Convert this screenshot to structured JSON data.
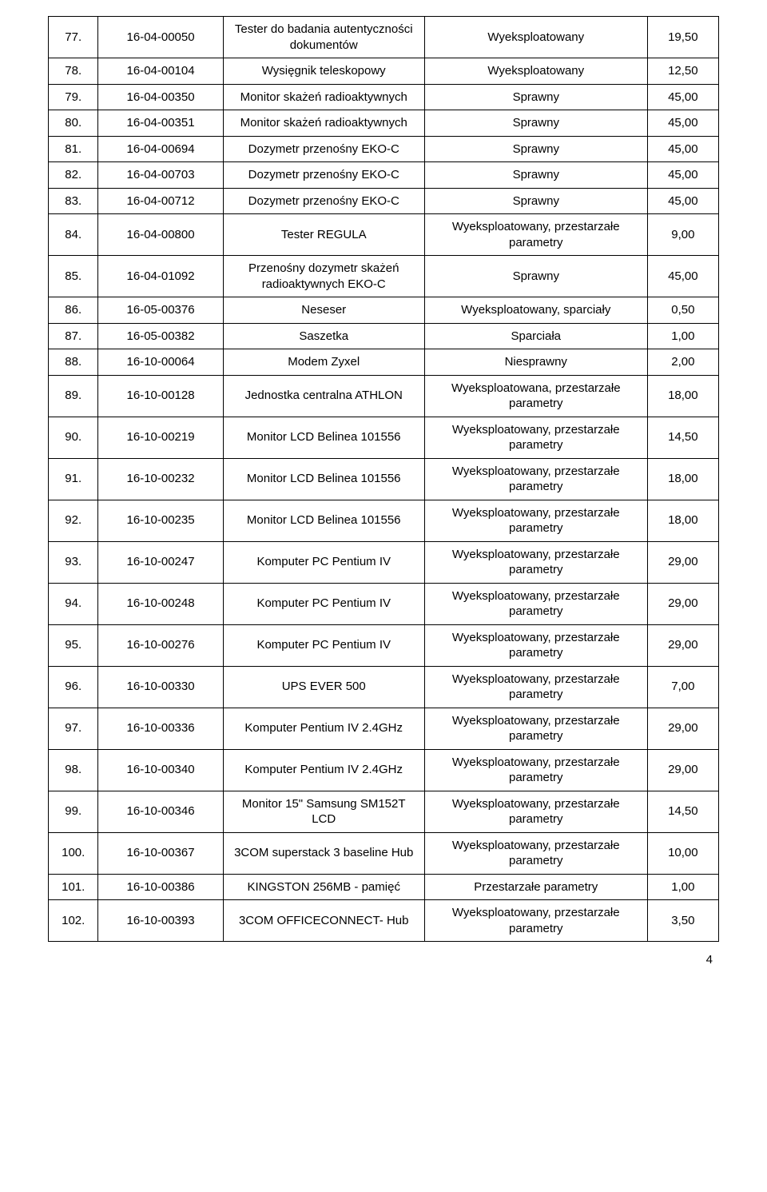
{
  "page_number": "4",
  "columns": [
    "no",
    "code",
    "desc",
    "status",
    "price"
  ],
  "rows": [
    {
      "no": "77.",
      "code": "16-04-00050",
      "desc": "Tester do badania autentyczności dokumentów",
      "status": "Wyeksploatowany",
      "price": "19,50"
    },
    {
      "no": "78.",
      "code": "16-04-00104",
      "desc": "Wysięgnik teleskopowy",
      "status": "Wyeksploatowany",
      "price": "12,50"
    },
    {
      "no": "79.",
      "code": "16-04-00350",
      "desc": "Monitor skażeń radioaktywnych",
      "status": "Sprawny",
      "price": "45,00"
    },
    {
      "no": "80.",
      "code": "16-04-00351",
      "desc": "Monitor skażeń radioaktywnych",
      "status": "Sprawny",
      "price": "45,00"
    },
    {
      "no": "81.",
      "code": "16-04-00694",
      "desc": "Dozymetr przenośny EKO-C",
      "status": "Sprawny",
      "price": "45,00"
    },
    {
      "no": "82.",
      "code": "16-04-00703",
      "desc": "Dozymetr przenośny EKO-C",
      "status": "Sprawny",
      "price": "45,00"
    },
    {
      "no": "83.",
      "code": "16-04-00712",
      "desc": "Dozymetr przenośny EKO-C",
      "status": "Sprawny",
      "price": "45,00"
    },
    {
      "no": "84.",
      "code": "16-04-00800",
      "desc": "Tester REGULA",
      "status": "Wyeksploatowany, przestarzałe parametry",
      "price": "9,00"
    },
    {
      "no": "85.",
      "code": "16-04-01092",
      "desc": "Przenośny dozymetr skażeń radioaktywnych EKO-C",
      "status": "Sprawny",
      "price": "45,00"
    },
    {
      "no": "86.",
      "code": "16-05-00376",
      "desc": "Neseser",
      "status": "Wyeksploatowany, sparciały",
      "price": "0,50"
    },
    {
      "no": "87.",
      "code": "16-05-00382",
      "desc": "Saszetka",
      "status": "Sparciała",
      "price": "1,00"
    },
    {
      "no": "88.",
      "code": "16-10-00064",
      "desc": "Modem Zyxel",
      "status": "Niesprawny",
      "price": "2,00"
    },
    {
      "no": "89.",
      "code": "16-10-00128",
      "desc": "Jednostka centralna ATHLON",
      "status": "Wyeksploatowana, przestarzałe parametry",
      "price": "18,00"
    },
    {
      "no": "90.",
      "code": "16-10-00219",
      "desc": "Monitor LCD Belinea 101556",
      "status": "Wyeksploatowany, przestarzałe parametry",
      "price": "14,50"
    },
    {
      "no": "91.",
      "code": "16-10-00232",
      "desc": "Monitor LCD Belinea 101556",
      "status": "Wyeksploatowany, przestarzałe parametry",
      "price": "18,00"
    },
    {
      "no": "92.",
      "code": "16-10-00235",
      "desc": "Monitor LCD Belinea 101556",
      "status": "Wyeksploatowany, przestarzałe parametry",
      "price": "18,00"
    },
    {
      "no": "93.",
      "code": "16-10-00247",
      "desc": "Komputer PC Pentium IV",
      "status": "Wyeksploatowany, przestarzałe parametry",
      "price": "29,00"
    },
    {
      "no": "94.",
      "code": "16-10-00248",
      "desc": "Komputer PC Pentium IV",
      "status": "Wyeksploatowany, przestarzałe parametry",
      "price": "29,00"
    },
    {
      "no": "95.",
      "code": "16-10-00276",
      "desc": "Komputer PC Pentium IV",
      "status": "Wyeksploatowany, przestarzałe parametry",
      "price": "29,00"
    },
    {
      "no": "96.",
      "code": "16-10-00330",
      "desc": "UPS EVER 500",
      "status": "Wyeksploatowany, przestarzałe parametry",
      "price": "7,00"
    },
    {
      "no": "97.",
      "code": "16-10-00336",
      "desc": "Komputer Pentium IV 2.4GHz",
      "status": "Wyeksploatowany, przestarzałe parametry",
      "price": "29,00"
    },
    {
      "no": "98.",
      "code": "16-10-00340",
      "desc": "Komputer Pentium IV 2.4GHz",
      "status": "Wyeksploatowany, przestarzałe parametry",
      "price": "29,00"
    },
    {
      "no": "99.",
      "code": "16-10-00346",
      "desc": "Monitor 15\" Samsung SM152T LCD",
      "status": "Wyeksploatowany, przestarzałe parametry",
      "price": "14,50"
    },
    {
      "no": "100.",
      "code": "16-10-00367",
      "desc": "3COM superstack 3 baseline Hub",
      "status": "Wyeksploatowany, przestarzałe parametry",
      "price": "10,00"
    },
    {
      "no": "101.",
      "code": "16-10-00386",
      "desc": "KINGSTON 256MB - pamięć",
      "status": "Przestarzałe parametry",
      "price": "1,00"
    },
    {
      "no": "102.",
      "code": "16-10-00393",
      "desc": "3COM OFFICECONNECT- Hub",
      "status": "Wyeksploatowany, przestarzałe parametry",
      "price": "3,50"
    }
  ]
}
